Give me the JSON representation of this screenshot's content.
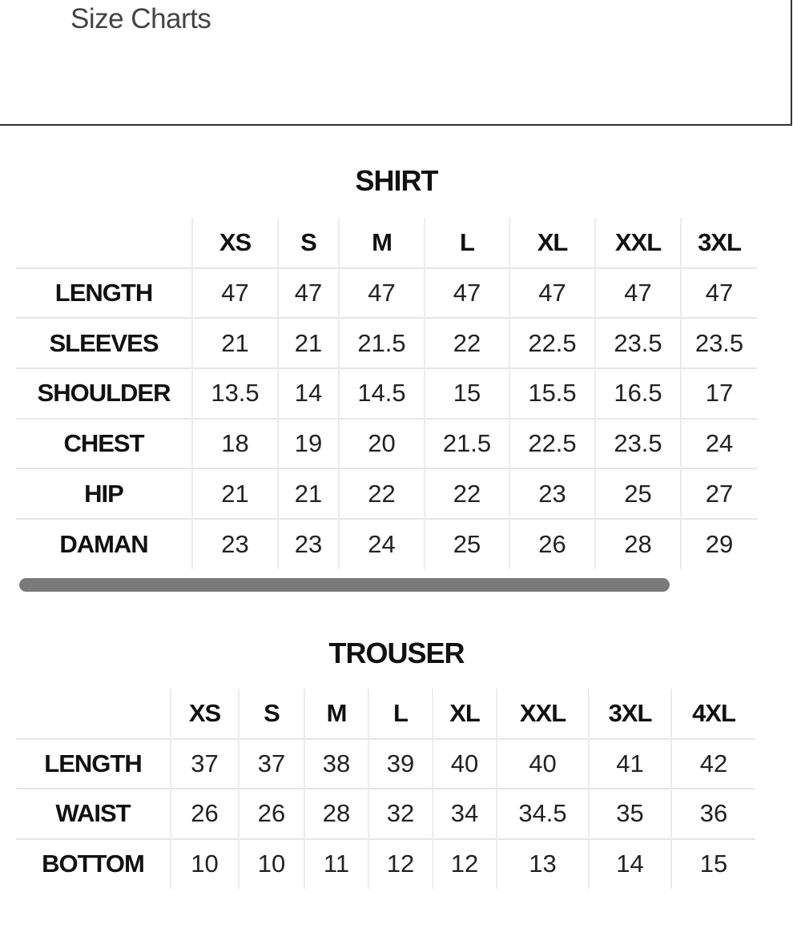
{
  "header": {
    "title": "Size Charts"
  },
  "shirt": {
    "title": "SHIRT",
    "sizes": [
      "XS",
      "S",
      "M",
      "L",
      "XL",
      "XXL",
      "3XL"
    ],
    "rows": [
      {
        "label": "LENGTH",
        "values": [
          "47",
          "47",
          "47",
          "47",
          "47",
          "47",
          "47"
        ]
      },
      {
        "label": "SLEEVES",
        "values": [
          "21",
          "21",
          "21.5",
          "22",
          "22.5",
          "23.5",
          "23.5"
        ]
      },
      {
        "label": "SHOULDER",
        "values": [
          "13.5",
          "14",
          "14.5",
          "15",
          "15.5",
          "16.5",
          "17"
        ]
      },
      {
        "label": "CHEST",
        "values": [
          "18",
          "19",
          "20",
          "21.5",
          "22.5",
          "23.5",
          "24"
        ]
      },
      {
        "label": "HIP",
        "values": [
          "21",
          "21",
          "22",
          "22",
          "23",
          "25",
          "27"
        ]
      },
      {
        "label": "DAMAN",
        "values": [
          "23",
          "23",
          "24",
          "25",
          "26",
          "28",
          "29"
        ]
      }
    ]
  },
  "trouser": {
    "title": "TROUSER",
    "sizes": [
      "XS",
      "S",
      "M",
      "L",
      "XL",
      "XXL",
      "3XL",
      "4XL"
    ],
    "rows": [
      {
        "label": "LENGTH",
        "values": [
          "37",
          "37",
          "38",
          "39",
          "40",
          "40",
          "41",
          "42"
        ]
      },
      {
        "label": "WAIST",
        "values": [
          "26",
          "26",
          "28",
          "32",
          "34",
          "34.5",
          "35",
          "36"
        ]
      },
      {
        "label": "BOTTOM",
        "values": [
          "10",
          "10",
          "11",
          "12",
          "12",
          "13",
          "14",
          "15"
        ]
      }
    ]
  }
}
